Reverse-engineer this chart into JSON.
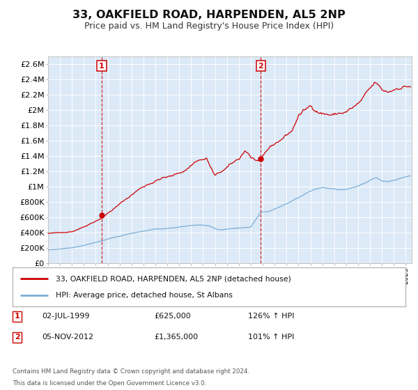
{
  "title": "33, OAKFIELD ROAD, HARPENDEN, AL5 2NP",
  "subtitle": "Price paid vs. HM Land Registry's House Price Index (HPI)",
  "title_fontsize": 11.5,
  "subtitle_fontsize": 9,
  "bg_color": "#dce9f7",
  "fig_bg_color": "#ffffff",
  "red_color": "#cc0000",
  "blue_color": "#7aadd4",
  "ylim": [
    0,
    2700000
  ],
  "xlim_start": 1995.0,
  "xlim_end": 2025.5,
  "marker1_x": 1999.5,
  "marker1_y": 625000,
  "marker2_x": 2012.83,
  "marker2_y": 1365000,
  "legend_line1": "33, OAKFIELD ROAD, HARPENDEN, AL5 2NP (detached house)",
  "legend_line2": "HPI: Average price, detached house, St Albans",
  "marker1_date": "02-JUL-1999",
  "marker1_price": "£625,000",
  "marker1_hpi": "126% ↑ HPI",
  "marker2_date": "05-NOV-2012",
  "marker2_price": "£1,365,000",
  "marker2_hpi": "101% ↑ HPI",
  "footer1": "Contains HM Land Registry data © Crown copyright and database right 2024.",
  "footer2": "This data is licensed under the Open Government Licence v3.0.",
  "yticks": [
    0,
    200000,
    400000,
    600000,
    800000,
    1000000,
    1200000,
    1400000,
    1600000,
    1800000,
    2000000,
    2200000,
    2400000,
    2600000
  ],
  "ytick_labels": [
    "£0",
    "£200K",
    "£400K",
    "£600K",
    "£800K",
    "£1M",
    "£1.2M",
    "£1.4M",
    "£1.6M",
    "£1.8M",
    "£2M",
    "£2.2M",
    "£2.4M",
    "£2.6M"
  ]
}
